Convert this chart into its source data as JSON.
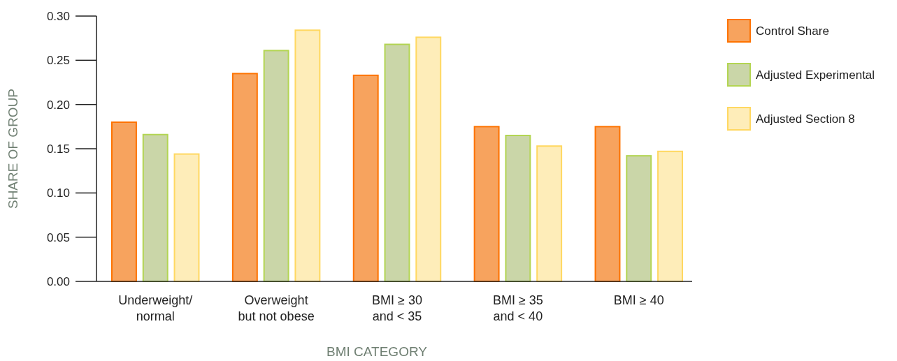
{
  "chart_data": {
    "type": "bar",
    "xlabel": "BMI CATEGORY",
    "ylabel": "SHARE OF GROUP",
    "categories": [
      "Underweight/\nnormal",
      "Overweight\nbut not obese",
      "BMI ≥ 30\nand < 35",
      "BMI ≥ 35\nand < 40",
      "BMI ≥ 40"
    ],
    "series": [
      {
        "name": "Control Share",
        "color": "#f7a35e",
        "values": [
          0.18,
          0.235,
          0.233,
          0.175,
          0.175
        ]
      },
      {
        "name": "Adjusted Experimental",
        "color": "#cad6a8",
        "values": [
          0.166,
          0.261,
          0.268,
          0.165,
          0.142
        ]
      },
      {
        "name": "Adjusted Section 8",
        "color": "#feedb9",
        "values": [
          0.144,
          0.284,
          0.276,
          0.153,
          0.147
        ]
      }
    ],
    "ylim": [
      0,
      0.3
    ],
    "yticks": [
      {
        "value": 0,
        "label": "0.00"
      },
      {
        "value": 0.05,
        "label": "0.05"
      },
      {
        "value": 0.1,
        "label": "0.10"
      },
      {
        "value": 0.15,
        "label": "0.15"
      },
      {
        "value": 0.2,
        "label": "0.20"
      },
      {
        "value": 0.25,
        "label": "0.25"
      },
      {
        "value": 0.3,
        "label": "0.30"
      }
    ],
    "grid": false,
    "legend": "top right"
  }
}
